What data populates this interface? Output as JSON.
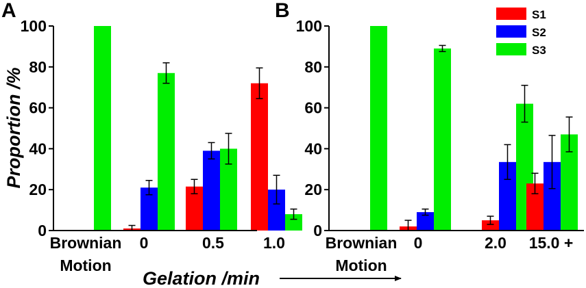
{
  "figure": {
    "ylabel": "Proportion /%",
    "xlabel": "Gelation /min",
    "legend": {
      "position": "top-right",
      "entries": [
        {
          "label": "S1",
          "color": "#ff0000"
        },
        {
          "label": "S2",
          "color": "#0000ff"
        },
        {
          "label": "S3",
          "color": "#00ee00"
        }
      ]
    }
  },
  "chart_data": [
    {
      "type": "bar",
      "panel": "A",
      "title": "",
      "ylabel": "Proportion /%",
      "ylim": [
        0,
        100
      ],
      "yticks": [
        0,
        20,
        40,
        60,
        80,
        100
      ],
      "categories": [
        {
          "line1": "Brownian",
          "line2": "Motion"
        },
        {
          "line1": "0",
          "line2": ""
        },
        {
          "line1": "0.5",
          "line2": ""
        },
        {
          "line1": "1.0",
          "line2": ""
        }
      ],
      "series": [
        {
          "name": "S1",
          "color": "#ff0000",
          "values": [
            0,
            1,
            21.5,
            72
          ],
          "errors": [
            0,
            1.5,
            3.5,
            7.5
          ]
        },
        {
          "name": "S2",
          "color": "#0000ff",
          "values": [
            0,
            21,
            39,
            20
          ],
          "errors": [
            0,
            3.5,
            4,
            7
          ]
        },
        {
          "name": "S3",
          "color": "#00ee00",
          "values": [
            100,
            77,
            40,
            8
          ],
          "errors": [
            0,
            5,
            7.5,
            2.5
          ]
        }
      ]
    },
    {
      "type": "bar",
      "panel": "B",
      "title": "",
      "ylabel": "",
      "ylim": [
        0,
        100
      ],
      "yticks": [
        0,
        20,
        40,
        60,
        80,
        100
      ],
      "categories": [
        {
          "line1": "Brownian",
          "line2": "Motion"
        },
        {
          "line1": "0",
          "line2": ""
        },
        {
          "line1": "2.0",
          "line2": ""
        },
        {
          "line1": "15.0 +",
          "line2": ""
        }
      ],
      "series": [
        {
          "name": "S1",
          "color": "#ff0000",
          "values": [
            0,
            2,
            5,
            23
          ],
          "errors": [
            0,
            3,
            2,
            5
          ]
        },
        {
          "name": "S2",
          "color": "#0000ff",
          "values": [
            0,
            9,
            33.5,
            33.5
          ],
          "errors": [
            0,
            1.5,
            8.5,
            13
          ]
        },
        {
          "name": "S3",
          "color": "#00ee00",
          "values": [
            100,
            89,
            62,
            47
          ],
          "errors": [
            0,
            1.5,
            9,
            8.5
          ]
        }
      ]
    }
  ]
}
